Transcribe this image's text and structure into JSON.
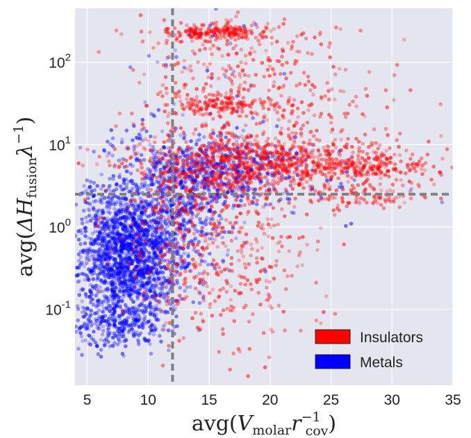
{
  "chart_data": {
    "type": "scatter",
    "x_scale": "linear",
    "y_scale": "log",
    "xlim": [
      4,
      35
    ],
    "ylim": [
      0.012,
      450
    ],
    "x_ticks": [
      5,
      10,
      15,
      20,
      25,
      30,
      35
    ],
    "x_tick_labels": [
      "5",
      "10",
      "15",
      "20",
      "25",
      "30",
      "35"
    ],
    "y_ticks": [
      0.1,
      1,
      10,
      100
    ],
    "y_tick_labels": [
      {
        "base": "10",
        "exp": "-1"
      },
      {
        "base": "10",
        "exp": "0"
      },
      {
        "base": "10",
        "exp": "1"
      },
      {
        "base": "10",
        "exp": "2"
      }
    ],
    "xlabel": {
      "prefix": "avg(",
      "main": "V",
      "sub": "molar",
      "main2": "r",
      "sup": "−1",
      "sub2": "cov",
      "suffix": ")"
    },
    "ylabel": {
      "prefix": "avg(",
      "main": "ΔH",
      "sub": "fusion",
      "main2": "λ",
      "sup": "−1",
      "suffix": ")"
    },
    "grid": true,
    "background": "#e5e5ef",
    "threshold_lines": {
      "x": 12,
      "y": 2.5,
      "style": "dashed",
      "color": "#808080"
    },
    "legend": {
      "placement": "lower-right",
      "entries": [
        {
          "label": "Insulators",
          "color": "#ff0000"
        },
        {
          "label": "Metals",
          "color": "#0000ff"
        }
      ]
    },
    "series": [
      {
        "name": "Insulators",
        "color": "#ff0000",
        "clusters": [
          {
            "cx": 15.5,
            "cy": 230,
            "sx": 2.2,
            "sy": 0.05,
            "n": 200
          },
          {
            "cx": 17.5,
            "cy": 80,
            "sx": 4.5,
            "sy": 0.35,
            "n": 220
          },
          {
            "cx": 16,
            "cy": 30,
            "sx": 2.5,
            "sy": 0.07,
            "n": 150
          },
          {
            "cx": 19,
            "cy": 6,
            "sx": 5.5,
            "sy": 0.2,
            "n": 900
          },
          {
            "cx": 28,
            "cy": 5.2,
            "sx": 3,
            "sy": 0.08,
            "n": 170
          },
          {
            "cx": 28,
            "cy": 2.3,
            "sx": 2,
            "sy": 0.05,
            "n": 60
          },
          {
            "cx": 16,
            "cy": 1.3,
            "sx": 4,
            "sy": 0.55,
            "n": 350
          },
          {
            "cx": 16,
            "cy": 0.2,
            "sx": 4,
            "sy": 0.4,
            "n": 130
          },
          {
            "cx": 22,
            "cy": 20,
            "sx": 5,
            "sy": 0.5,
            "n": 120
          },
          {
            "cx": 12,
            "cy": 0.8,
            "sx": 1.5,
            "sy": 0.5,
            "n": 80
          }
        ]
      },
      {
        "name": "Metals",
        "color": "#0000ff",
        "clusters": [
          {
            "cx": 8.3,
            "cy": 0.45,
            "sx": 2.2,
            "sy": 0.42,
            "n": 1700
          },
          {
            "cx": 7.5,
            "cy": 0.06,
            "sx": 2,
            "sy": 0.15,
            "n": 220
          },
          {
            "cx": 14.5,
            "cy": 5,
            "sx": 3.5,
            "sy": 0.2,
            "n": 450
          },
          {
            "cx": 12,
            "cy": 1.5,
            "sx": 2.2,
            "sy": 0.45,
            "n": 400
          },
          {
            "cx": 18,
            "cy": 4,
            "sx": 5,
            "sy": 0.25,
            "n": 150
          },
          {
            "cx": 14,
            "cy": 50,
            "sx": 3,
            "sy": 0.6,
            "n": 40
          }
        ]
      }
    ]
  }
}
